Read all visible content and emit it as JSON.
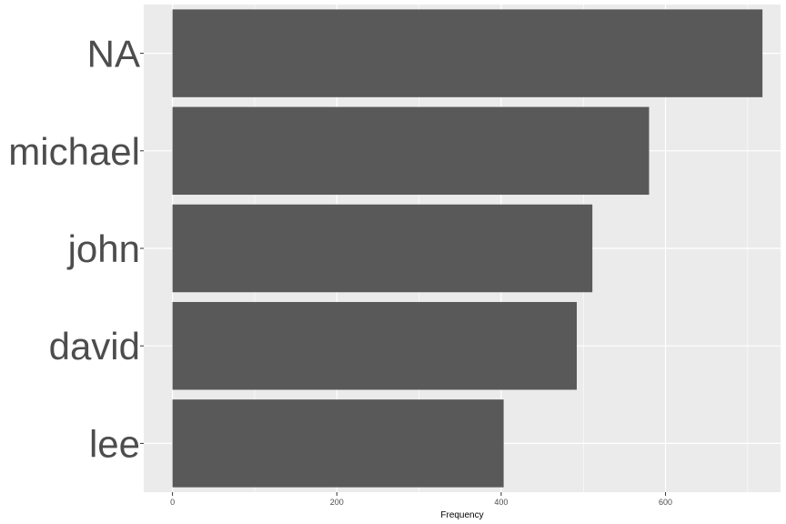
{
  "chart_data": {
    "type": "bar",
    "orientation": "horizontal",
    "categories": [
      "NA",
      "michael",
      "john",
      "david",
      "lee"
    ],
    "values": [
      718,
      580,
      511,
      492,
      403
    ],
    "xlabel": "Frequency",
    "ylabel": "",
    "xlim": [
      -35,
      740
    ],
    "x_ticks": [
      0,
      200,
      400,
      600
    ],
    "x_tick_labels": [
      "0",
      "200",
      "400",
      "600"
    ],
    "grid": true,
    "colors": {
      "panel_background": "#ebebeb",
      "grid": "#ffffff",
      "bar": "#595959",
      "text": "#4d4d4d"
    }
  }
}
